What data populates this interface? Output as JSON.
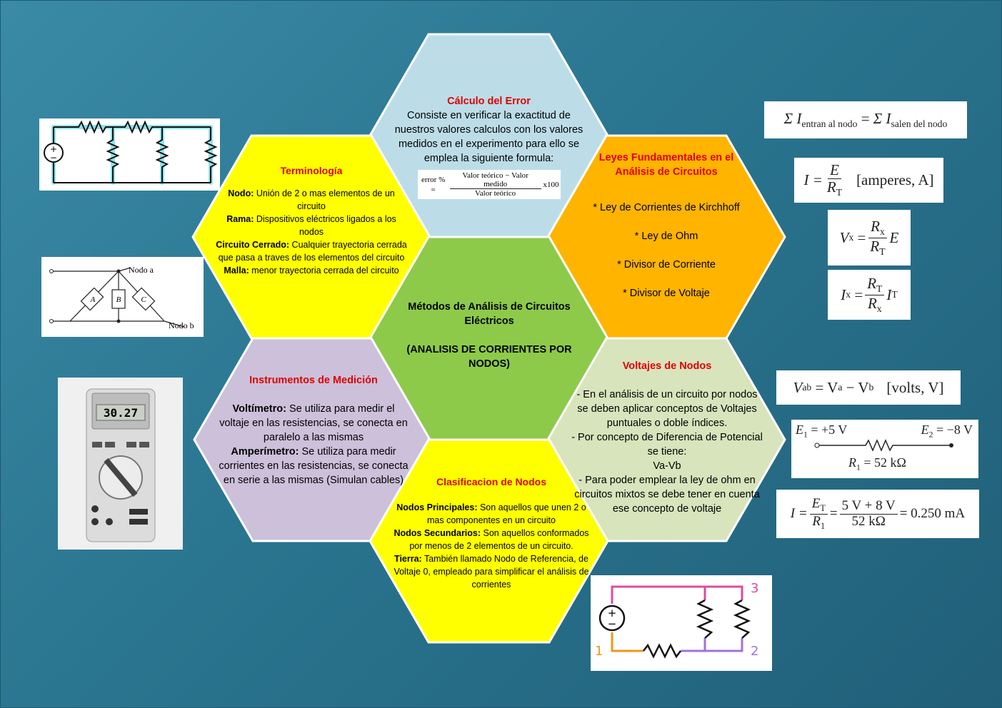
{
  "center": {
    "title": "Métodos de Análisis de Circuitos Eléctricos",
    "subtitle": "(ANALISIS DE CORRIENTES  POR NODOS)"
  },
  "error": {
    "title": "Cálculo del Error",
    "body": "Consiste en verificar la exactitud de nuestros valores calculos con los valores medidos en el experimento para ello se emplea la siguiente formula:",
    "formula": {
      "lhs": "error % =",
      "num": "Valor teórico  − Valor medido",
      "den": "Valor teórico",
      "rhs": "x100"
    }
  },
  "terminologia": {
    "title": "Terminología",
    "items": [
      {
        "term": "Nodo:",
        "text": " Unión de 2 o mas elementos de un circuito"
      },
      {
        "term": "Rama:",
        "text": " Dispositivos eléctricos ligados a los nodos"
      },
      {
        "term": "Circuito Cerrado:",
        "text": " Cualquier trayectoria cerrada que pasa a traves de los elementos del circuito"
      },
      {
        "term": "Malla:",
        "text": " menor trayectoria cerrada del circuito"
      }
    ]
  },
  "leyes": {
    "title": "Leyes Fundamentales en el Análisis de Circuitos",
    "items": [
      "* Ley de Corrientes de Kirchhoff",
      "* Ley de Ohm",
      "* Divisor de Corriente",
      "* Divisor de Voltaje"
    ]
  },
  "instrumentos": {
    "title": "Instrumentos de Medición",
    "items": [
      {
        "term": "Voltímetro:",
        "text": " Se utiliza para medir el voltaje en las resistencias, se conecta en paralelo a las mismas"
      },
      {
        "term": "Amperímetro:",
        "text": " Se utiliza para medir corrientes en las resistencias, se conecta en serie a las mismas (Simulan cables)"
      }
    ]
  },
  "voltajes": {
    "title": "Voltajes de Nodos",
    "lines": [
      "- En el análisis de un circuito por nodos se deben aplicar conceptos de Voltajes puntuales o doble índices.",
      "- Por concepto de Diferencia de Potencial se tiene:",
      "Va-Vb",
      "- Para poder emplear la ley de ohm en circuitos mixtos se debe tener en cuenta ese concepto de voltaje"
    ]
  },
  "clasificacion": {
    "title": "Clasificacion de Nodos",
    "items": [
      {
        "term": "Nodos Principales:",
        "text": " Son aquellos que unen 2 o mas componentes en un circuito"
      },
      {
        "term": "Nodos Secundarios:",
        "text": " Son aquellos conformados por menos de 2 elementos de un circuito."
      },
      {
        "term": "Tierra:",
        "text": " También llamado Nodo de Referencia, de Voltaje 0, empleado para simplificar el análisis de corrientes"
      }
    ]
  },
  "formulas": {
    "kcl": {
      "lhs": "Σ I",
      "lhs_sub": "entran al nodo",
      "eq": "=",
      "rhs": "Σ I",
      "rhs_sub": "salen del nodo"
    },
    "ohm": {
      "lhs": "I =",
      "num": "E",
      "den": "R",
      "den_sub": "T",
      "unit": "[amperes, A]"
    },
    "vdiv": {
      "lhs": "V",
      "lhs_sub": "x",
      "eq": "=",
      "num": "R",
      "num_sub": "x",
      "den": "R",
      "den_sub": "T",
      "tail": "E"
    },
    "idiv": {
      "lhs": "I",
      "lhs_sub": "x",
      "eq": "=",
      "num": "R",
      "num_sub": "T",
      "den": "R",
      "den_sub": "x",
      "tail": "I",
      "tail_sub": "T"
    },
    "vab": {
      "lhs": "V",
      "lhs_sub": "ab",
      "eq": "= V",
      "a_sub": "a",
      "minus": "− V",
      "b_sub": "b",
      "unit": "[volts, V]"
    },
    "example": {
      "e1": "E",
      "e1_sub": "1",
      "e1_val": "= +5 V",
      "e2": "E",
      "e2_sub": "2",
      "e2_val": "= −8 V",
      "r": "R",
      "r_sub": "1",
      "r_val": "= 52 kΩ"
    },
    "current": {
      "lhs": "I =",
      "num1": "E",
      "num1_sub": "T",
      "den1": "R",
      "den1_sub": "1",
      "eq": "=",
      "num2": "5 V + 8 V",
      "den2": "52 kΩ",
      "result": "= 0.250 mA"
    }
  },
  "images": {
    "nodo_a": "Nodo a",
    "nodo_b": "Nodo b",
    "branch_labels": [
      "A",
      "B",
      "C"
    ],
    "meter_reading": "30.27",
    "node_numbers": [
      "1",
      "2",
      "3"
    ]
  },
  "colors": {
    "yellow": "#ffff00",
    "orange": "#ffb400",
    "green": "#8dca4a",
    "light_blue": "#bcdde8",
    "lavender": "#ccc0da",
    "pale_green": "#d8e4bc",
    "title_red": "#e00000"
  }
}
